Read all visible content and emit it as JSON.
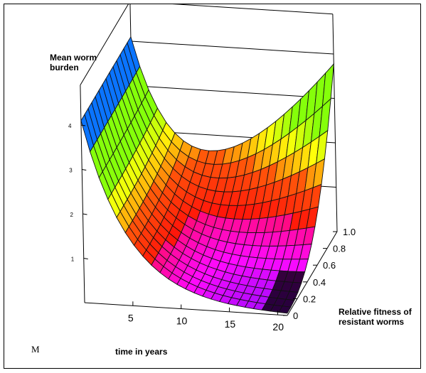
{
  "chart_data": {
    "type": "surface",
    "title": "",
    "zlabel": "Mean worm\nburden",
    "xlabel": "time in years",
    "ylabel": "Relative fitness of\nresistant worms",
    "corner_label": "M",
    "x_ticks": [
      "5",
      "10",
      "15",
      "20"
    ],
    "x_tick_values": [
      5,
      10,
      15,
      20
    ],
    "y_ticks": [
      "0",
      "0.2",
      "0.4",
      "0.6",
      "0.8",
      "1.0"
    ],
    "y_tick_values": [
      0,
      0.2,
      0.4,
      0.6,
      0.8,
      1.0
    ],
    "z_ticks": [
      "1",
      "2",
      "3",
      "4"
    ],
    "z_tick_values": [
      1,
      2,
      3,
      4
    ],
    "xlim": [
      0,
      21
    ],
    "ylim": [
      0,
      1.0
    ],
    "zlim": [
      0,
      5
    ],
    "box": true,
    "surface_samples": [
      {
        "fitness": 0.0,
        "points": [
          [
            0,
            4.1
          ],
          [
            5,
            1.4
          ],
          [
            10,
            0.45
          ],
          [
            15,
            0.15
          ],
          [
            20,
            0.05
          ]
        ]
      },
      {
        "fitness": 0.5,
        "points": [
          [
            0,
            4.1
          ],
          [
            5,
            1.4
          ],
          [
            10,
            0.6
          ],
          [
            15,
            0.45
          ],
          [
            20,
            0.5
          ]
        ]
      },
      {
        "fitness": 1.0,
        "points": [
          [
            0,
            4.1
          ],
          [
            5,
            1.45
          ],
          [
            10,
            1.5
          ],
          [
            15,
            2.5
          ],
          [
            20,
            3.8
          ]
        ]
      }
    ]
  }
}
